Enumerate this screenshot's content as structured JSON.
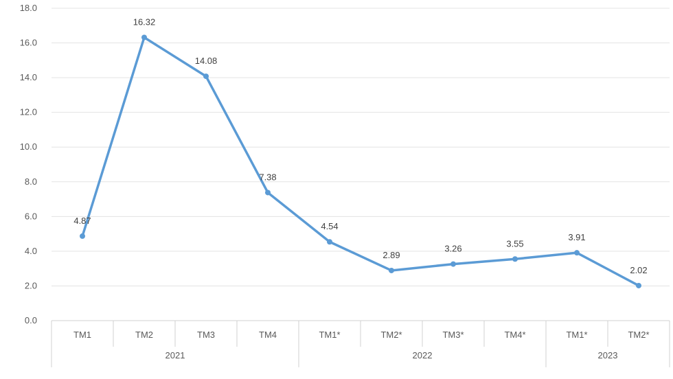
{
  "chart_data": {
    "type": "line",
    "title": "",
    "xlabel": "",
    "ylabel": "",
    "ylim": [
      0,
      18
    ],
    "y_ticks": [
      "0.0",
      "2.0",
      "4.0",
      "6.0",
      "8.0",
      "10.0",
      "12.0",
      "14.0",
      "16.0",
      "18.0"
    ],
    "categories": [
      "TM1",
      "TM2",
      "TM3",
      "TM4",
      "TM1*",
      "TM2*",
      "TM3*",
      "TM4*",
      "TM1*",
      "TM2*"
    ],
    "groups": [
      {
        "label": "2021",
        "span": 4
      },
      {
        "label": "2022",
        "span": 4
      },
      {
        "label": "2023",
        "span": 2
      }
    ],
    "series": [
      {
        "name": "",
        "values": [
          4.87,
          16.32,
          14.08,
          7.38,
          4.54,
          2.89,
          3.26,
          3.55,
          3.91,
          2.02
        ],
        "labels": [
          "4.87",
          "16.32",
          "14.08",
          "7.38",
          "4.54",
          "2.89",
          "3.26",
          "3.55",
          "3.91",
          "2.02"
        ],
        "color": "#5b9bd5"
      }
    ],
    "grid": true,
    "legend": "none"
  }
}
